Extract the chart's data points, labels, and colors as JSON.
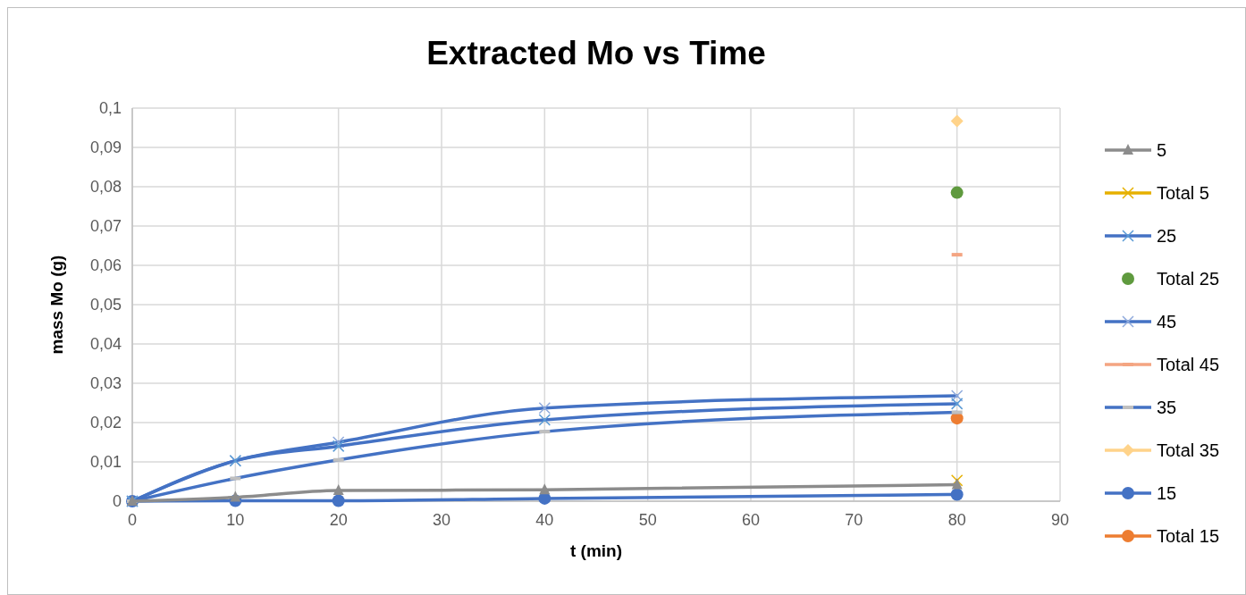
{
  "chart_data": {
    "type": "line",
    "title": "Extracted Mo vs Time",
    "xlabel": "t (min)",
    "ylabel": "mass Mo (g)",
    "x": [
      0,
      10,
      20,
      40,
      80
    ],
    "xlim": [
      0,
      90
    ],
    "xticks": [
      0,
      10,
      20,
      30,
      40,
      50,
      60,
      70,
      80,
      90
    ],
    "ylim": [
      0,
      0.1
    ],
    "yticks": [
      0,
      {
        "value": 0.01,
        "label": "0,01"
      },
      {
        "value": 0.02,
        "label": "0,02"
      },
      {
        "value": 0.03,
        "label": "0,03"
      },
      {
        "value": 0.04,
        "label": "0,04"
      },
      {
        "value": 0.05,
        "label": "0,05"
      },
      {
        "value": 0.06,
        "label": "0,06"
      },
      {
        "value": 0.07,
        "label": "0,07"
      },
      {
        "value": 0.08,
        "label": "0,08"
      },
      {
        "value": 0.09,
        "label": "0,09"
      },
      {
        "value": 0.1,
        "label": "0,1"
      }
    ],
    "grid": true,
    "legend": "right",
    "series": [
      {
        "name": "5",
        "color": "#8c8c8c",
        "marker": "triangle",
        "values": [
          0,
          0.001,
          0.0027,
          0.0029,
          0.0042
        ]
      },
      {
        "name": "Total 5",
        "color": "#e6b000",
        "marker": "cross",
        "values": [
          null,
          null,
          null,
          null,
          0.0053
        ]
      },
      {
        "name": "25",
        "color": "#4472c4",
        "colors": [
          "#5b9bd5",
          "#5b9bd5",
          "#5b9bd5",
          "#5b9bd5",
          "#5b9bd5"
        ],
        "marker": "cross",
        "values": [
          0,
          0.0103,
          0.014,
          0.0207,
          0.0248
        ]
      },
      {
        "name": "Total 25",
        "type": "scatter",
        "color": "#5f9a3e",
        "marker": "circle",
        "values": [
          null,
          null,
          null,
          null,
          0.0785
        ]
      },
      {
        "name": "45",
        "color": "#4472c4",
        "colors": [
          "#8faadc",
          "#8faadc",
          "#8faadc",
          "#8faadc",
          "#8faadc"
        ],
        "marker": "cross",
        "values": [
          0,
          0.0103,
          0.015,
          0.0237,
          0.0268
        ]
      },
      {
        "name": "Total 45",
        "color": "#f4a582",
        "marker": "square",
        "values": [
          null,
          null,
          null,
          null,
          0.0627
        ]
      },
      {
        "name": "35",
        "color": "#4472c4",
        "colors": [
          "#bfbfbf",
          "#bfbfbf",
          "#bfbfbf",
          "#bfbfbf",
          "#bfbfbf"
        ],
        "marker": "square",
        "values": [
          0,
          0.0058,
          0.0105,
          0.0177,
          0.0226
        ]
      },
      {
        "name": "Total 35",
        "color": "#ffd38a",
        "marker": "diamond",
        "values": [
          null,
          null,
          null,
          null,
          0.0967
        ]
      },
      {
        "name": "15",
        "color": "#4472c4",
        "marker": "circle",
        "values": [
          0,
          0.0001,
          0.0001,
          0.0007,
          0.0017
        ]
      },
      {
        "name": "Total 15",
        "color": "#ed7d31",
        "marker": "circle",
        "values": [
          null,
          null,
          null,
          null,
          0.0211
        ]
      }
    ]
  }
}
